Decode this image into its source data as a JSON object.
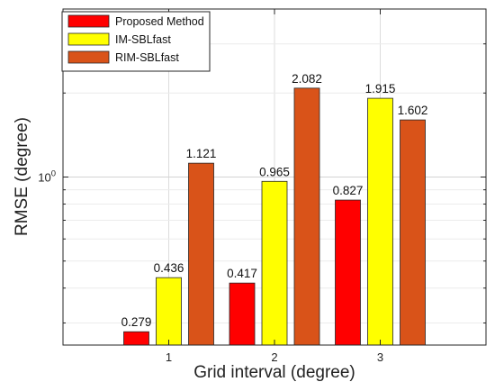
{
  "chart_data": {
    "type": "bar",
    "title": "",
    "xlabel": "Grid interval (degree)",
    "ylabel": "RMSE (degree)",
    "yscale": "log",
    "ylim": [
      0.25,
      4
    ],
    "grid": true,
    "legend_position": "top-left",
    "categories": [
      "1",
      "2",
      "3"
    ],
    "yticks": [
      {
        "value": 1,
        "label": "10",
        "exponent": "0"
      }
    ],
    "series": [
      {
        "name": "Proposed Method",
        "color": "#ff0000",
        "values": [
          0.279,
          0.417,
          0.827
        ],
        "labels": [
          "0.279",
          "0.417",
          "0.827"
        ]
      },
      {
        "name": "IM-SBLfast",
        "color": "#ffff00",
        "values": [
          0.436,
          0.965,
          1.915
        ],
        "labels": [
          "0.436",
          "0.965",
          "1.915"
        ]
      },
      {
        "name": "RIM-SBLfast",
        "color": "#d95319",
        "values": [
          1.121,
          2.082,
          1.602
        ],
        "labels": [
          "1.121",
          "2.082",
          "1.602"
        ]
      }
    ]
  }
}
